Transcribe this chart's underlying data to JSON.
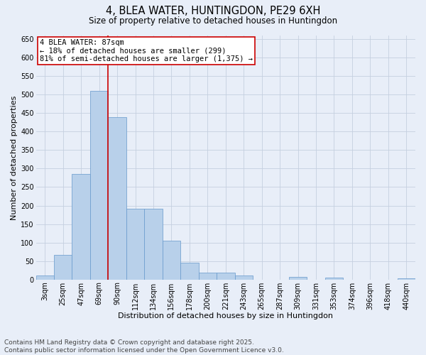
{
  "title": "4, BLEA WATER, HUNTINGDON, PE29 6XH",
  "subtitle": "Size of property relative to detached houses in Huntingdon",
  "xlabel": "Distribution of detached houses by size in Huntingdon",
  "ylabel": "Number of detached properties",
  "bar_color": "#b8d0ea",
  "bar_edge_color": "#6699cc",
  "background_color": "#e8eef8",
  "grid_color": "#c5cfe0",
  "categories": [
    "3sqm",
    "25sqm",
    "47sqm",
    "69sqm",
    "90sqm",
    "112sqm",
    "134sqm",
    "156sqm",
    "178sqm",
    "200sqm",
    "221sqm",
    "243sqm",
    "265sqm",
    "287sqm",
    "309sqm",
    "331sqm",
    "353sqm",
    "374sqm",
    "396sqm",
    "418sqm",
    "440sqm"
  ],
  "values": [
    10,
    67,
    285,
    510,
    440,
    192,
    192,
    105,
    46,
    18,
    18,
    10,
    0,
    0,
    7,
    0,
    5,
    0,
    0,
    0,
    4
  ],
  "ylim": [
    0,
    660
  ],
  "yticks": [
    0,
    50,
    100,
    150,
    200,
    250,
    300,
    350,
    400,
    450,
    500,
    550,
    600,
    650
  ],
  "property_label": "4 BLEA WATER: 87sqm",
  "annotation_line1": "← 18% of detached houses are smaller (299)",
  "annotation_line2": "81% of semi-detached houses are larger (1,375) →",
  "annotation_box_color": "#ffffff",
  "annotation_box_edge_color": "#cc0000",
  "vline_color": "#cc0000",
  "vline_x": 3.5,
  "footer_line1": "Contains HM Land Registry data © Crown copyright and database right 2025.",
  "footer_line2": "Contains public sector information licensed under the Open Government Licence v3.0.",
  "footer_fontsize": 6.5,
  "title_fontsize": 10.5,
  "subtitle_fontsize": 8.5,
  "axis_label_fontsize": 8,
  "tick_fontsize": 7,
  "annotation_fontsize": 7.5
}
